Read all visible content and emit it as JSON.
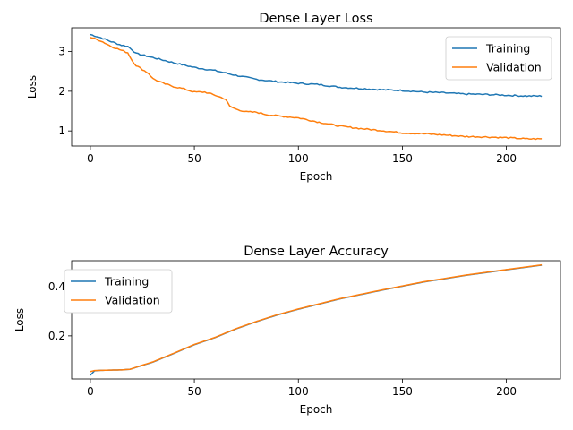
{
  "chart_data": [
    {
      "type": "line",
      "title": "Dense Layer Loss",
      "xlabel": "Epoch",
      "ylabel": "Loss",
      "xlim": [
        -9,
        226
      ],
      "ylim": [
        0.62,
        3.6
      ],
      "xticks": [
        0,
        50,
        100,
        150,
        200
      ],
      "yticks": [
        1,
        2,
        3
      ],
      "grid": false,
      "legend": "upper right",
      "noise": 0.035,
      "series": [
        {
          "name": "Training",
          "color": "#1f77b4",
          "points": [
            [
              0,
              3.43
            ],
            [
              5,
              3.35
            ],
            [
              10,
              3.25
            ],
            [
              15,
              3.16
            ],
            [
              18,
              3.13
            ],
            [
              20,
              3.05
            ],
            [
              22,
              2.95
            ],
            [
              30,
              2.85
            ],
            [
              40,
              2.72
            ],
            [
              50,
              2.6
            ],
            [
              60,
              2.52
            ],
            [
              70,
              2.4
            ],
            [
              80,
              2.3
            ],
            [
              90,
              2.24
            ],
            [
              100,
              2.2
            ],
            [
              110,
              2.17
            ],
            [
              120,
              2.1
            ],
            [
              130,
              2.07
            ],
            [
              140,
              2.04
            ],
            [
              150,
              2.02
            ],
            [
              160,
              1.98
            ],
            [
              170,
              1.96
            ],
            [
              180,
              1.93
            ],
            [
              190,
              1.92
            ],
            [
              200,
              1.9
            ],
            [
              210,
              1.88
            ],
            [
              217,
              1.88
            ]
          ]
        },
        {
          "name": "Validation",
          "color": "#ff7f0e",
          "points": [
            [
              0,
              3.36
            ],
            [
              5,
              3.27
            ],
            [
              10,
              3.13
            ],
            [
              15,
              3.03
            ],
            [
              18,
              2.97
            ],
            [
              20,
              2.78
            ],
            [
              22,
              2.65
            ],
            [
              25,
              2.55
            ],
            [
              28,
              2.45
            ],
            [
              30,
              2.32
            ],
            [
              35,
              2.2
            ],
            [
              40,
              2.12
            ],
            [
              45,
              2.06
            ],
            [
              50,
              1.98
            ],
            [
              55,
              1.98
            ],
            [
              60,
              1.9
            ],
            [
              65,
              1.8
            ],
            [
              67,
              1.62
            ],
            [
              70,
              1.55
            ],
            [
              75,
              1.48
            ],
            [
              80,
              1.47
            ],
            [
              85,
              1.41
            ],
            [
              90,
              1.38
            ],
            [
              100,
              1.33
            ],
            [
              110,
              1.22
            ],
            [
              120,
              1.12
            ],
            [
              130,
              1.06
            ],
            [
              140,
              1.01
            ],
            [
              150,
              0.95
            ],
            [
              160,
              0.93
            ],
            [
              170,
              0.9
            ],
            [
              180,
              0.86
            ],
            [
              190,
              0.85
            ],
            [
              200,
              0.83
            ],
            [
              210,
              0.8
            ],
            [
              217,
              0.8
            ]
          ]
        }
      ]
    },
    {
      "type": "line",
      "title": "Dense Layer Accuracy",
      "xlabel": "Epoch",
      "ylabel": "Loss",
      "xlim": [
        -9,
        226
      ],
      "ylim": [
        0.025,
        0.505
      ],
      "xticks": [
        0,
        50,
        100,
        150,
        200
      ],
      "yticks": [
        0.2,
        0.4
      ],
      "grid": false,
      "legend": "upper left",
      "noise": 0,
      "series": [
        {
          "name": "Training",
          "color": "#1f77b4",
          "points": [
            [
              0,
              0.04
            ],
            [
              2,
              0.058
            ],
            [
              5,
              0.06
            ],
            [
              10,
              0.061
            ],
            [
              15,
              0.062
            ],
            [
              19,
              0.064
            ],
            [
              25,
              0.08
            ],
            [
              30,
              0.093
            ],
            [
              40,
              0.128
            ],
            [
              50,
              0.164
            ],
            [
              60,
              0.193
            ],
            [
              70,
              0.228
            ],
            [
              80,
              0.258
            ],
            [
              90,
              0.285
            ],
            [
              100,
              0.308
            ],
            [
              120,
              0.35
            ],
            [
              140,
              0.385
            ],
            [
              160,
              0.418
            ],
            [
              180,
              0.445
            ],
            [
              200,
              0.468
            ],
            [
              217,
              0.487
            ]
          ]
        },
        {
          "name": "Validation",
          "color": "#ff7f0e",
          "points": [
            [
              0,
              0.055
            ],
            [
              2,
              0.059
            ],
            [
              5,
              0.06
            ],
            [
              10,
              0.061
            ],
            [
              15,
              0.062
            ],
            [
              19,
              0.064
            ],
            [
              25,
              0.081
            ],
            [
              30,
              0.094
            ],
            [
              40,
              0.129
            ],
            [
              50,
              0.165
            ],
            [
              60,
              0.194
            ],
            [
              70,
              0.229
            ],
            [
              80,
              0.259
            ],
            [
              90,
              0.286
            ],
            [
              100,
              0.309
            ],
            [
              120,
              0.351
            ],
            [
              140,
              0.386
            ],
            [
              160,
              0.419
            ],
            [
              180,
              0.446
            ],
            [
              200,
              0.469
            ],
            [
              217,
              0.488
            ]
          ]
        }
      ]
    }
  ]
}
